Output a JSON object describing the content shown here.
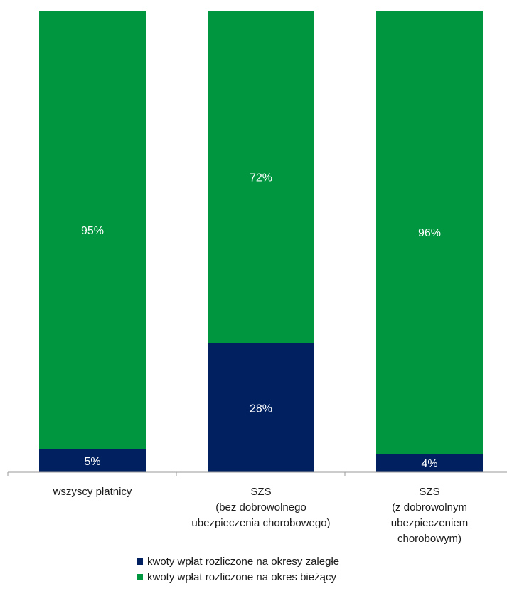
{
  "chart_data": {
    "type": "bar",
    "stacked": true,
    "normalized": true,
    "ylim": [
      0,
      100
    ],
    "grid": false,
    "legend_position": "bottom",
    "categories": [
      [
        "wszyscy płatnicy"
      ],
      [
        "SZS",
        "(bez dobrowolnego",
        "ubezpieczenia chorobowego)"
      ],
      [
        "SZS",
        "(z dobrowolnym",
        "ubezpieczeniem",
        "chorobowym)"
      ]
    ],
    "series": [
      {
        "name": "kwoty wpłat rozliczone na okresy zaległe",
        "color": "#002060",
        "values": [
          5,
          28,
          4
        ],
        "labels": [
          "5%",
          "28%",
          "4%"
        ]
      },
      {
        "name": "kwoty wpłat rozliczone na okres bieżący",
        "color": "#00963f",
        "values": [
          95,
          72,
          96
        ],
        "labels": [
          "95%",
          "72%",
          "96%"
        ]
      }
    ]
  }
}
